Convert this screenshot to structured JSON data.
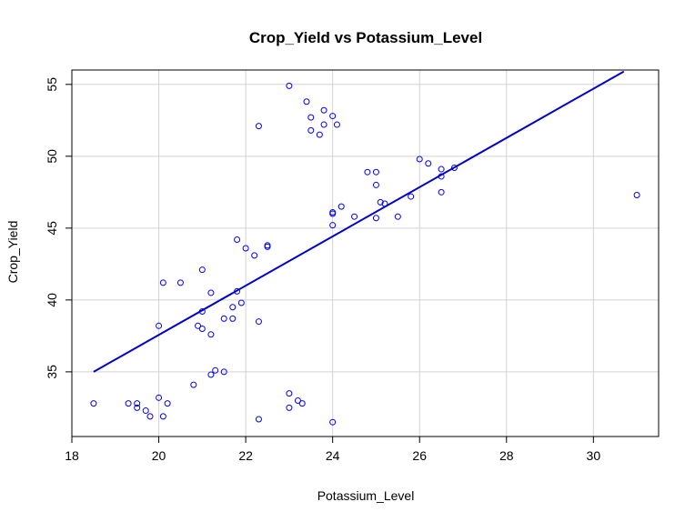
{
  "chart_data": {
    "type": "scatter",
    "title": "Crop_Yield vs Potassium_Level",
    "xlabel": "Potassium_Level",
    "ylabel": "Crop_Yield",
    "xlim": [
      18,
      31.5
    ],
    "ylim": [
      30.5,
      56
    ],
    "xticks": [
      18,
      20,
      22,
      24,
      26,
      28,
      30
    ],
    "yticks": [
      35,
      40,
      45,
      50,
      55
    ],
    "grid": true,
    "point_color": "#0000ff",
    "line_color": "#0000cd",
    "points": [
      [
        18.5,
        32.8
      ],
      [
        19.3,
        32.8
      ],
      [
        19.5,
        32.8
      ],
      [
        19.5,
        32.5
      ],
      [
        19.7,
        32.3
      ],
      [
        19.8,
        31.9
      ],
      [
        20.0,
        33.2
      ],
      [
        20.1,
        31.9
      ],
      [
        20.2,
        32.8
      ],
      [
        20.0,
        38.2
      ],
      [
        20.1,
        41.2
      ],
      [
        20.5,
        41.2
      ],
      [
        20.8,
        34.1
      ],
      [
        20.9,
        38.2
      ],
      [
        21.0,
        39.2
      ],
      [
        21.0,
        38.0
      ],
      [
        21.0,
        42.1
      ],
      [
        21.2,
        37.6
      ],
      [
        21.2,
        40.5
      ],
      [
        21.2,
        34.8
      ],
      [
        21.3,
        35.1
      ],
      [
        21.5,
        35.0
      ],
      [
        21.5,
        38.7
      ],
      [
        21.7,
        39.5
      ],
      [
        21.7,
        38.7
      ],
      [
        21.8,
        40.6
      ],
      [
        21.8,
        44.2
      ],
      [
        21.9,
        39.8
      ],
      [
        22.0,
        43.6
      ],
      [
        22.2,
        43.1
      ],
      [
        22.3,
        38.5
      ],
      [
        22.3,
        31.7
      ],
      [
        22.3,
        52.1
      ],
      [
        22.5,
        43.7
      ],
      [
        22.5,
        43.8
      ],
      [
        23.0,
        54.9
      ],
      [
        23.0,
        33.5
      ],
      [
        23.0,
        32.5
      ],
      [
        23.2,
        33.0
      ],
      [
        23.3,
        32.8
      ],
      [
        23.4,
        53.8
      ],
      [
        23.5,
        52.7
      ],
      [
        23.5,
        51.8
      ],
      [
        23.7,
        51.5
      ],
      [
        23.8,
        53.2
      ],
      [
        23.8,
        52.2
      ],
      [
        24.0,
        52.8
      ],
      [
        24.0,
        46.1
      ],
      [
        24.0,
        46.0
      ],
      [
        24.0,
        45.2
      ],
      [
        24.0,
        31.5
      ],
      [
        24.1,
        52.2
      ],
      [
        24.2,
        46.5
      ],
      [
        24.5,
        45.8
      ],
      [
        24.8,
        48.9
      ],
      [
        25.0,
        48.9
      ],
      [
        25.0,
        48.0
      ],
      [
        25.0,
        45.7
      ],
      [
        25.1,
        46.8
      ],
      [
        25.2,
        46.7
      ],
      [
        25.5,
        45.8
      ],
      [
        25.8,
        47.2
      ],
      [
        26.0,
        49.8
      ],
      [
        26.2,
        49.5
      ],
      [
        26.5,
        49.1
      ],
      [
        26.5,
        48.6
      ],
      [
        26.5,
        47.5
      ],
      [
        26.8,
        49.2
      ],
      [
        31.0,
        47.3
      ]
    ],
    "regression_line": {
      "x": [
        18.5,
        30.7
      ],
      "y": [
        35.0,
        55.9
      ]
    }
  }
}
